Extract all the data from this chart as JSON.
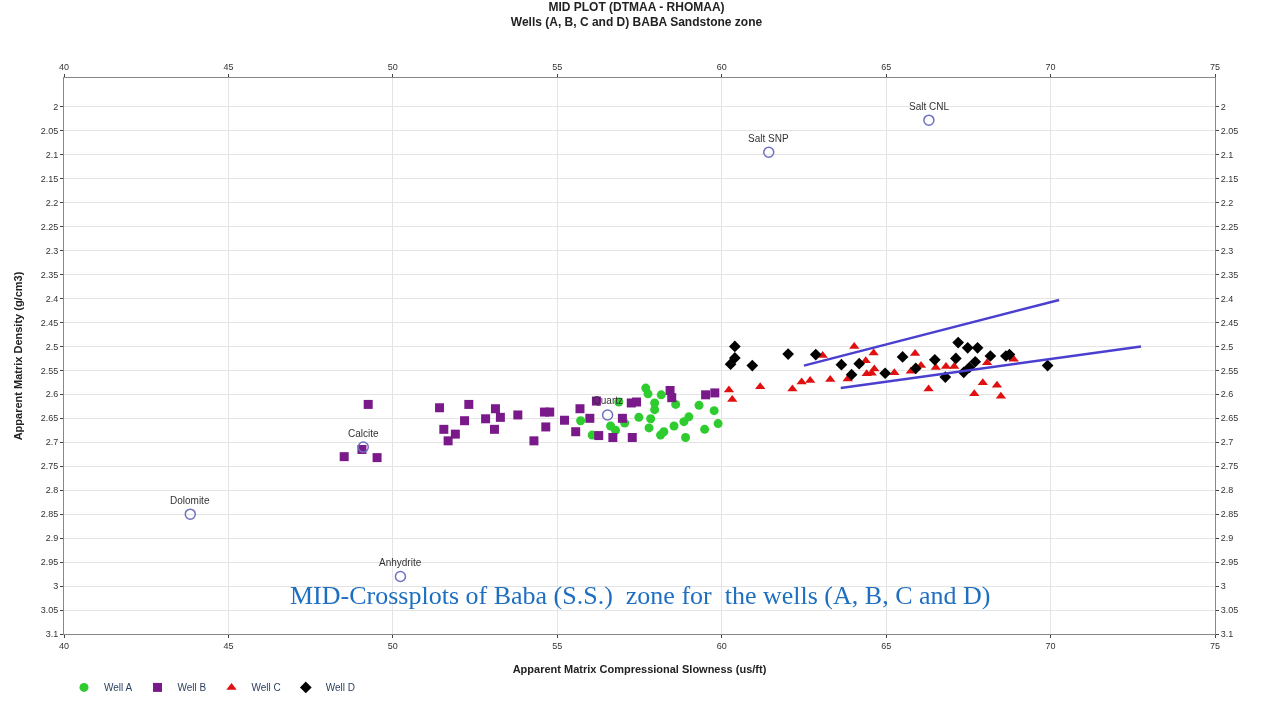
{
  "chart_data": {
    "type": "scatter",
    "title": "MID PLOT (DTMAA - RHOMAA)",
    "subtitle": "Wells (A, B, C and D) BABA Sandstone zone",
    "xlabel": "Apparent Matrix Compressional Slowness (us/ft)",
    "ylabel": "Apparent Matrix Density (g/cm3)",
    "xlim": [
      40,
      75
    ],
    "xticks": [
      40,
      45,
      50,
      55,
      60,
      65,
      70,
      75
    ],
    "x2lim": [
      40,
      75
    ],
    "x2ticks": [
      40,
      45,
      50,
      55,
      60,
      65,
      70,
      75
    ],
    "ylim": [
      3.1,
      1.94
    ],
    "yticks": [
      2,
      2.05,
      2.1,
      2.15,
      2.2,
      2.25,
      2.3,
      2.35,
      2.4,
      2.45,
      2.5,
      2.55,
      2.6,
      2.65,
      2.7,
      2.75,
      2.8,
      2.85,
      2.9,
      2.95,
      3,
      3.05,
      3.1
    ],
    "y2lim": [
      3.1,
      1.94
    ],
    "y2ticks": [
      2,
      2.05,
      2.1,
      2.15,
      2.2,
      2.25,
      2.3,
      2.35,
      2.4,
      2.45,
      2.5,
      2.55,
      2.6,
      2.65,
      2.7,
      2.75,
      2.8,
      2.85,
      2.9,
      2.95,
      3,
      3.05,
      3.1
    ],
    "grid": true,
    "legend": "bottom left",
    "series": [
      {
        "name": "Well A",
        "color": "#2ecc2e",
        "marker": "circle",
        "x": [
          57.69,
          57.76,
          58.16,
          57.96,
          58.6,
          57.96,
          56.87,
          57.48,
          57.84,
          57.05,
          56.62,
          56.77,
          57.79,
          55.71,
          56.06,
          58.24,
          58.14,
          58.55,
          58.85,
          59.0,
          58.9,
          59.31,
          59.77,
          59.89,
          59.48
        ],
        "values": [
          2.587,
          2.599,
          2.601,
          2.618,
          2.621,
          2.632,
          2.616,
          2.648,
          2.651,
          2.66,
          2.666,
          2.675,
          2.67,
          2.655,
          2.685,
          2.678,
          2.685,
          2.666,
          2.657,
          2.647,
          2.69,
          2.623,
          2.634,
          2.661,
          2.673
        ]
      },
      {
        "name": "Well B",
        "color": "#7a1a8a",
        "marker": "square",
        "x": [
          49.25,
          48.52,
          49.06,
          49.52,
          51.42,
          52.31,
          52.18,
          51.55,
          51.9,
          51.68,
          53.12,
          53.27,
          52.82,
          53.09,
          53.8,
          54.29,
          54.61,
          54.77,
          54.65,
          55.22,
          55.69,
          55.99,
          55.56,
          56.19,
          56.69,
          56.26,
          57.25,
          57.41,
          56.98,
          57.28,
          58.43,
          58.48,
          59.51,
          59.79
        ],
        "values": [
          2.621,
          2.73,
          2.715,
          2.732,
          2.628,
          2.621,
          2.655,
          2.673,
          2.683,
          2.697,
          2.63,
          2.648,
          2.651,
          2.673,
          2.643,
          2.697,
          2.637,
          2.637,
          2.668,
          2.654,
          2.63,
          2.65,
          2.678,
          2.614,
          2.69,
          2.686,
          2.618,
          2.616,
          2.65,
          2.69,
          2.592,
          2.607,
          2.601,
          2.597
        ]
      },
      {
        "name": "Well C",
        "color": "#e01010",
        "marker": "triangle",
        "x": [
          60.22,
          60.32,
          61.17,
          62.15,
          62.43,
          62.69,
          63.3,
          63.83,
          63.07,
          64.03,
          64.62,
          64.38,
          64.64,
          64.41,
          64.56,
          65.25,
          65.75,
          65.88,
          66.06,
          66.29,
          66.51,
          66.82,
          67.07,
          68.07,
          67.94,
          67.68,
          68.37,
          68.49,
          68.88
        ],
        "values": [
          2.591,
          2.611,
          2.584,
          2.589,
          2.574,
          2.571,
          2.569,
          2.568,
          2.519,
          2.5,
          2.514,
          2.53,
          2.547,
          2.557,
          2.556,
          2.555,
          2.552,
          2.515,
          2.54,
          2.589,
          2.544,
          2.542,
          2.542,
          2.534,
          2.576,
          2.599,
          2.581,
          2.604,
          2.527
        ]
      },
      {
        "name": "Well D",
        "color": "#000000",
        "marker": "diamond",
        "x": [
          60.4,
          60.4,
          60.27,
          60.93,
          62.02,
          62.86,
          63.64,
          63.95,
          64.18,
          64.97,
          65.5,
          65.9,
          66.48,
          66.8,
          67.12,
          67.19,
          67.48,
          67.36,
          67.53,
          67.71,
          67.78,
          68.17,
          68.64,
          68.75,
          69.91
        ],
        "values": [
          2.5,
          2.524,
          2.537,
          2.54,
          2.516,
          2.517,
          2.538,
          2.559,
          2.536,
          2.556,
          2.522,
          2.546,
          2.528,
          2.564,
          2.525,
          2.492,
          2.503,
          2.554,
          2.544,
          2.532,
          2.503,
          2.52,
          2.52,
          2.517,
          2.54
        ]
      },
      {
        "color": "#7070c0",
        "marker": "circle",
        "x": [
          66.3,
          61.43,
          43.84,
          50.23,
          49.1,
          56.53
        ],
        "values": [
          2.028,
          2.095,
          2.85,
          2.98,
          2.71,
          2.643
        ]
      },
      {
        "type": "line",
        "color": "#4b3fd0",
        "marker": "none",
        "x": [
          62.5,
          70.26
        ],
        "values": [
          2.54,
          2.403
        ]
      },
      {
        "type": "line",
        "color": "#4b3fd0",
        "marker": "none",
        "x": [
          63.62,
          72.75
        ],
        "values": [
          2.587,
          2.5
        ]
      }
    ],
    "annotations": [
      {
        "text": "Salt CNL",
        "x": 66.3,
        "y": 2.028
      },
      {
        "text": "Salt SNP",
        "x": 61.43,
        "y": 2.095
      },
      {
        "text": "Dolomite",
        "x": 43.84,
        "y": 2.85
      },
      {
        "text": "Anhydrite",
        "x": 50.23,
        "y": 2.98
      },
      {
        "text": "Calcite",
        "x": 49.1,
        "y": 2.71
      },
      {
        "text": "Quartz",
        "x": 56.53,
        "y": 2.643
      },
      "MID-Crossplots of Baba (S.S.)  zone for  the wells (A, B, C and D)"
    ]
  }
}
